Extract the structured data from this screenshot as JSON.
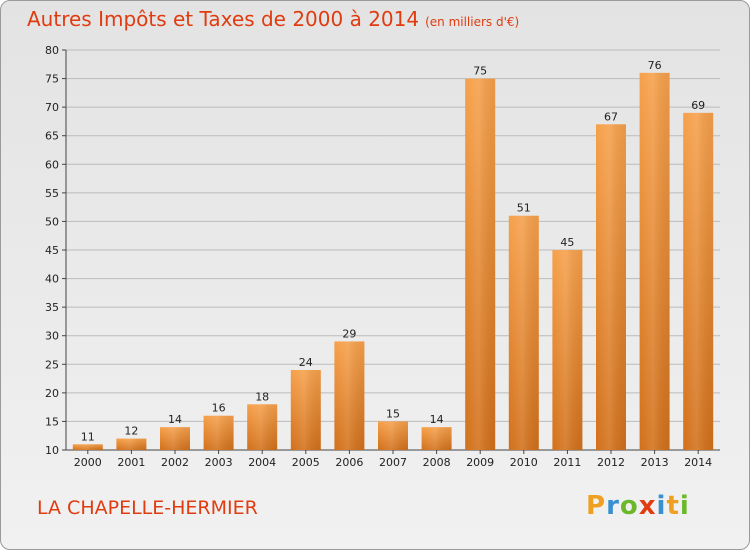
{
  "title": "Autres Impôts et Taxes de 2000 à 2014",
  "unit": "(en milliers d'€)",
  "commune": "LA CHAPELLE-HERMIER",
  "logo": {
    "text": "Proxiti"
  },
  "colors": {
    "bar_top": "#f6a04a",
    "bar_bottom": "#d2701a",
    "title": "#e03c10",
    "grid": "#bbbbbb"
  },
  "chart_data": {
    "type": "bar",
    "title": "Autres Impôts et Taxes de 2000 à 2014",
    "categories": [
      "2000",
      "2001",
      "2002",
      "2003",
      "2004",
      "2005",
      "2006",
      "2007",
      "2008",
      "2009",
      "2010",
      "2011",
      "2012",
      "2013",
      "2014"
    ],
    "values": [
      11,
      12,
      14,
      16,
      18,
      24,
      29,
      15,
      14,
      75,
      51,
      45,
      67,
      76,
      69
    ],
    "ylim": [
      10,
      80
    ],
    "yticks": [
      10,
      15,
      20,
      25,
      30,
      35,
      40,
      45,
      50,
      55,
      60,
      65,
      70,
      75,
      80
    ],
    "grid": true,
    "legend": "none"
  }
}
